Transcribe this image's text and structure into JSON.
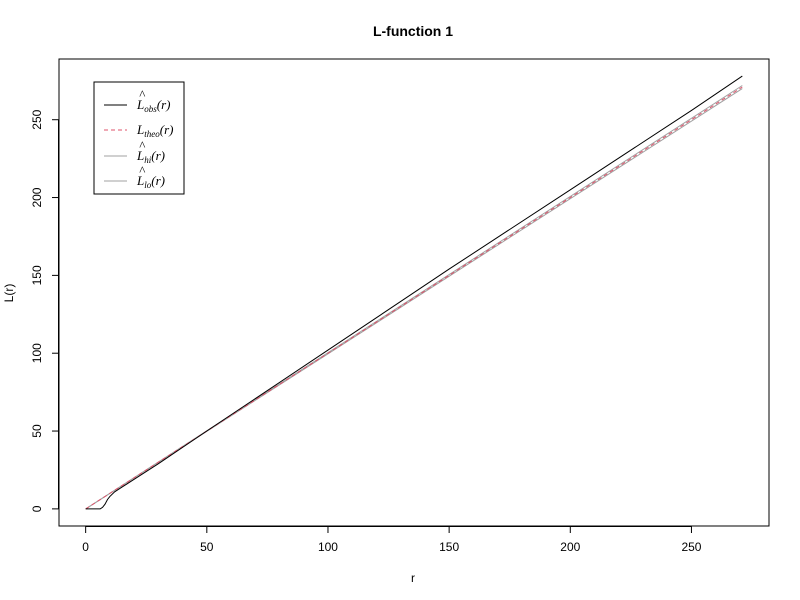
{
  "chart_data": {
    "type": "line",
    "title": "L-function 1",
    "xlabel": "r",
    "ylabel": "L(r)",
    "xlim": [
      -11,
      282
    ],
    "ylim": [
      -11,
      289
    ],
    "xticks": [
      0,
      50,
      100,
      150,
      200,
      250
    ],
    "xtick_labels": [
      "0",
      "50",
      "100",
      "150",
      "200",
      "250"
    ],
    "yticks": [
      0,
      50,
      100,
      150,
      200,
      250
    ],
    "ytick_labels": [
      "0",
      "50",
      "100",
      "150",
      "200",
      "250"
    ],
    "grid": false,
    "legend_position": "top-left",
    "series": [
      {
        "key": "obs",
        "legend_main": "L",
        "legend_hat": "^",
        "legend_sub": "obs",
        "legend_tail": "(r)",
        "color": "#000000",
        "dash": "solid",
        "x": [
          0,
          4,
          6,
          7,
          8,
          9,
          10,
          12,
          15,
          20,
          30,
          50,
          100,
          150,
          200,
          250,
          271
        ],
        "y": [
          0,
          0,
          0,
          1,
          3,
          6,
          8,
          11,
          14,
          19,
          29,
          50,
          102,
          154,
          205,
          256,
          278
        ]
      },
      {
        "key": "theo",
        "legend_main": "L",
        "legend_hat": "",
        "legend_sub": "theo",
        "legend_tail": "(r)",
        "color": "#DF536B",
        "dash": "dashed",
        "x": [
          0,
          271
        ],
        "y": [
          0,
          271
        ]
      },
      {
        "key": "hi",
        "legend_main": "L",
        "legend_hat": "^",
        "legend_sub": "hi",
        "legend_tail": "(r)",
        "color": "#A0A0A0",
        "dash": "solid",
        "x": [
          0,
          271
        ],
        "y": [
          0,
          272
        ]
      },
      {
        "key": "lo",
        "legend_main": "L",
        "legend_hat": "^",
        "legend_sub": "lo",
        "legend_tail": "(r)",
        "color": "#A0A0A0",
        "dash": "solid",
        "x": [
          0,
          271
        ],
        "y": [
          0,
          270
        ]
      }
    ]
  }
}
